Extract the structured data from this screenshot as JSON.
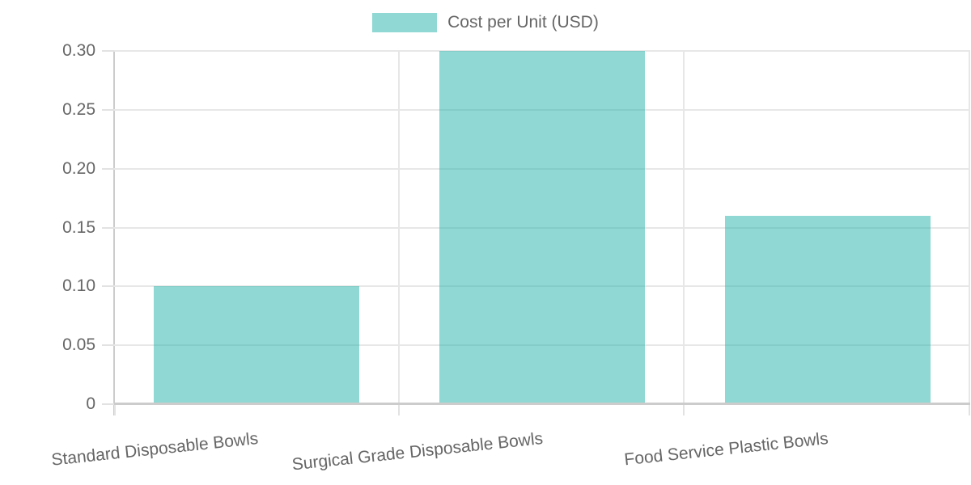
{
  "chart_data": {
    "type": "bar",
    "title": "",
    "legend": {
      "label": "Cost per Unit (USD)",
      "position": "top-center"
    },
    "categories": [
      "Standard Disposable Bowls",
      "Surgical Grade Disposable Bowls",
      "Food Service Plastic Bowls"
    ],
    "values": [
      0.1,
      0.3,
      0.16
    ],
    "xlabel": "",
    "ylabel": "",
    "ylim": [
      0,
      0.3
    ],
    "yticks": [
      0,
      0.05,
      0.1,
      0.15,
      0.2,
      0.25,
      0.3
    ],
    "ytick_labels": [
      "0",
      "0.05",
      "0.10",
      "0.15",
      "0.20",
      "0.25",
      "0.30"
    ],
    "grid": true,
    "x_label_rotation_deg": -6,
    "bar_width_fraction": 0.72
  },
  "colors": {
    "bar_fill": "rgba(32, 178, 170, 0.5)",
    "bar_rendered_hex": "#8FD8D4",
    "gridline": "#e7e7e7",
    "axis_line": "#cccccc",
    "tick": "#e2e2e2",
    "label_text": "#666666",
    "background": "#ffffff"
  }
}
